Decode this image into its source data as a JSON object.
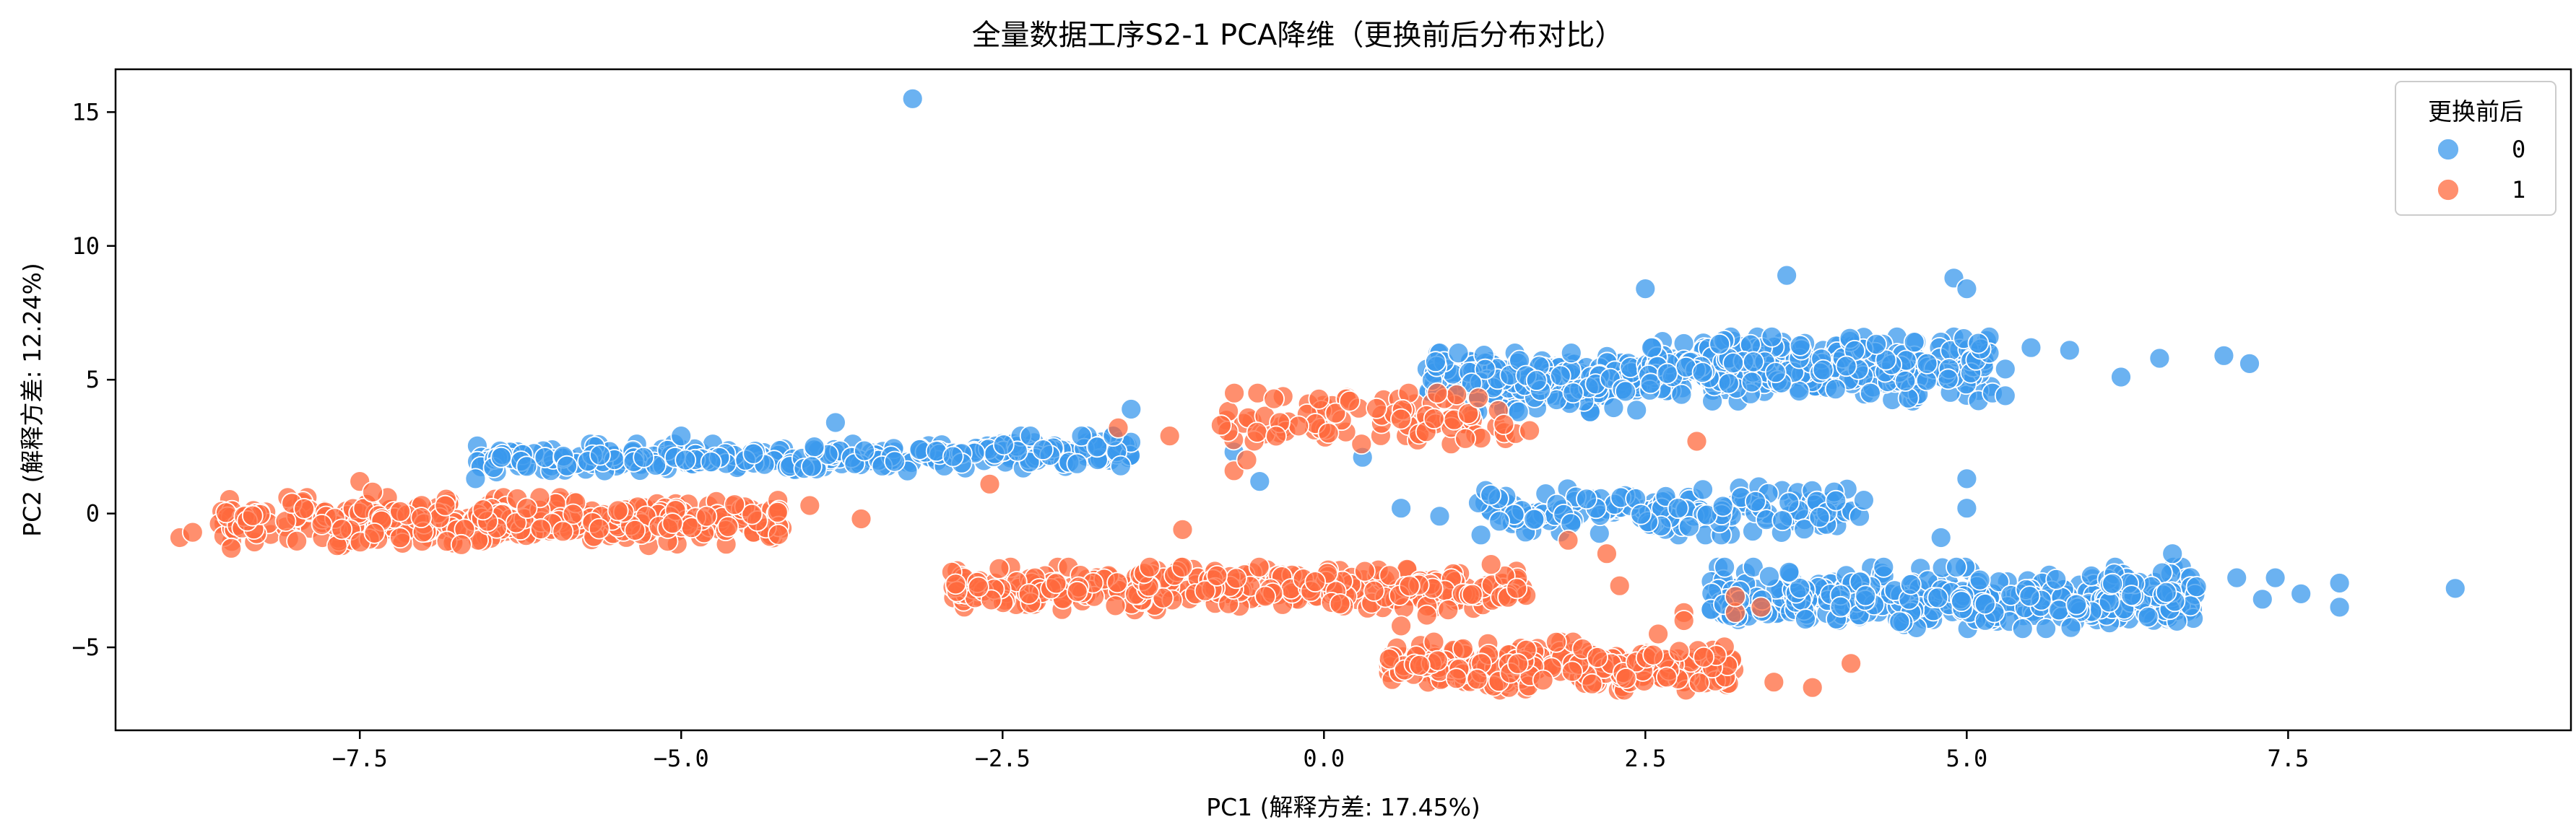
{
  "chart_data": {
    "type": "scatter",
    "title": "全量数据工序S2-1 PCA降维（更换前后分布对比）",
    "xlabel": "PC1 (解释方差: 17.45%)",
    "ylabel": "PC2 (解释方差: 12.24%)",
    "xlim": [
      -9.4,
      9.7
    ],
    "ylim": [
      -8.1,
      16.6
    ],
    "xticks": [
      -7.5,
      -5.0,
      -2.5,
      0.0,
      2.5,
      5.0,
      7.5
    ],
    "xtick_labels": [
      "−7.5",
      "−5.0",
      "−2.5",
      "0.0",
      "2.5",
      "5.0",
      "7.5"
    ],
    "yticks": [
      -5,
      0,
      5,
      10,
      15
    ],
    "ytick_labels": [
      "−5",
      "0",
      "5",
      "10",
      "15"
    ],
    "grid": false,
    "legend": {
      "title": "更换前后",
      "placement": "top-right",
      "entries": [
        "0",
        "1"
      ]
    },
    "series": [
      {
        "name": "0",
        "color": "#3A98EC",
        "clusters": [
          {
            "x": [
              -6.6,
              -3.2
            ],
            "y": [
              1.5,
              2.6
            ],
            "n": 200
          },
          {
            "x": [
              -3.2,
              -1.5
            ],
            "y": [
              1.7,
              2.9
            ],
            "n": 120
          },
          {
            "x": [
              0.8,
              2.5
            ],
            "y": [
              3.8,
              6.0
            ],
            "n": 220
          },
          {
            "x": [
              2.5,
              5.2
            ],
            "y": [
              4.2,
              6.6
            ],
            "n": 340
          },
          {
            "x": [
              1.2,
              4.2
            ],
            "y": [
              -0.8,
              1.0
            ],
            "n": 180
          },
          {
            "x": [
              3.0,
              6.8
            ],
            "y": [
              -4.3,
              -2.0
            ],
            "n": 420
          }
        ],
        "points": [
          [
            -3.2,
            15.5
          ],
          [
            2.5,
            8.4
          ],
          [
            3.6,
            8.9
          ],
          [
            4.9,
            8.8
          ],
          [
            5.0,
            8.4
          ],
          [
            5.8,
            6.1
          ],
          [
            6.2,
            5.1
          ],
          [
            6.5,
            5.8
          ],
          [
            7.0,
            5.9
          ],
          [
            7.2,
            5.6
          ],
          [
            5.5,
            6.2
          ],
          [
            5.3,
            5.4
          ],
          [
            5.2,
            4.5
          ],
          [
            5.3,
            4.4
          ],
          [
            -3.8,
            3.4
          ],
          [
            -6.6,
            1.3
          ],
          [
            -6.4,
            2.1
          ],
          [
            -5.0,
            2.9
          ],
          [
            0.6,
            0.2
          ],
          [
            0.9,
            -0.1
          ],
          [
            0.3,
            2.1
          ],
          [
            4.8,
            -0.9
          ],
          [
            5.0,
            1.3
          ],
          [
            5.0,
            0.2
          ],
          [
            4.2,
            0.5
          ],
          [
            6.6,
            -1.5
          ],
          [
            7.1,
            -2.4
          ],
          [
            7.3,
            -3.2
          ],
          [
            7.4,
            -2.4
          ],
          [
            7.6,
            -3.0
          ],
          [
            7.9,
            -3.5
          ],
          [
            7.9,
            -2.6
          ],
          [
            8.8,
            -2.8
          ],
          [
            -1.5,
            3.9
          ],
          [
            -0.5,
            1.2
          ],
          [
            -0.7,
            2.3
          ]
        ]
      },
      {
        "name": "1",
        "color": "#FF6A3D",
        "clusters": [
          {
            "x": [
              -8.6,
              -4.2
            ],
            "y": [
              -1.2,
              0.6
            ],
            "n": 380
          },
          {
            "x": [
              -2.9,
              1.6
            ],
            "y": [
              -3.6,
              -2.0
            ],
            "n": 380
          },
          {
            "x": [
              0.5,
              3.2
            ],
            "y": [
              -6.6,
              -4.8
            ],
            "n": 280
          },
          {
            "x": [
              -0.8,
              1.5
            ],
            "y": [
              2.6,
              4.5
            ],
            "n": 90
          }
        ],
        "points": [
          [
            -8.9,
            -0.9
          ],
          [
            -8.8,
            -0.7
          ],
          [
            -8.5,
            -1.3
          ],
          [
            -7.5,
            1.2
          ],
          [
            -7.4,
            0.8
          ],
          [
            -6.1,
            0.6
          ],
          [
            -6.2,
            0.2
          ],
          [
            -4.0,
            0.3
          ],
          [
            -3.6,
            -0.2
          ],
          [
            -2.6,
            1.1
          ],
          [
            -1.6,
            3.2
          ],
          [
            -1.2,
            2.9
          ],
          [
            -0.7,
            1.6
          ],
          [
            -0.6,
            2.0
          ],
          [
            -0.8,
            3.3
          ],
          [
            0.2,
            4.2
          ],
          [
            1.1,
            2.8
          ],
          [
            1.6,
            3.1
          ],
          [
            2.9,
            2.7
          ],
          [
            1.9,
            -1.0
          ],
          [
            2.2,
            -1.5
          ],
          [
            2.3,
            -2.7
          ],
          [
            1.5,
            -2.8
          ],
          [
            1.3,
            -1.9
          ],
          [
            2.8,
            -3.7
          ],
          [
            3.2,
            -3.7
          ],
          [
            3.2,
            -3.1
          ],
          [
            3.4,
            -3.5
          ],
          [
            3.8,
            -6.5
          ],
          [
            4.1,
            -5.6
          ],
          [
            3.5,
            -6.3
          ],
          [
            2.8,
            -4.0
          ],
          [
            2.6,
            -4.5
          ],
          [
            0.8,
            -3.8
          ],
          [
            0.6,
            -4.2
          ],
          [
            -1.1,
            -0.6
          ]
        ]
      }
    ]
  }
}
